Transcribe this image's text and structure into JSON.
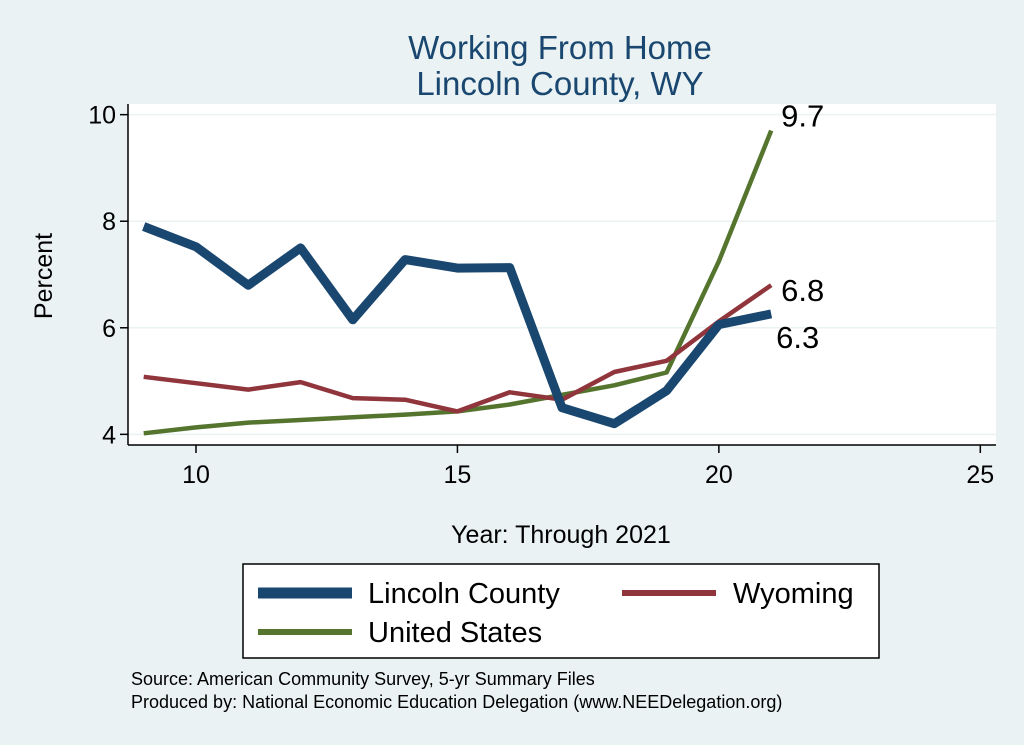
{
  "chart_data": {
    "type": "line",
    "title": [
      "Working From Home",
      "Lincoln County, WY"
    ],
    "xlabel": "Year: Through 2021",
    "ylabel": "Percent",
    "xlim": [
      8.7,
      25.3
    ],
    "ylim": [
      3.8,
      10.2
    ],
    "xticks": [
      10,
      15,
      20,
      25
    ],
    "yticks": [
      4,
      6,
      8,
      10
    ],
    "x": [
      9,
      10,
      11,
      12,
      13,
      14,
      15,
      16,
      17,
      18,
      19,
      20,
      21
    ],
    "series": [
      {
        "name": "Lincoln County",
        "color": "#1a476f",
        "values": [
          7.9,
          7.52,
          6.8,
          7.5,
          6.15,
          7.28,
          7.12,
          7.13,
          4.5,
          4.2,
          4.82,
          6.06,
          6.26
        ]
      },
      {
        "name": "Wyoming",
        "color": "#90353b",
        "values": [
          5.08,
          4.96,
          4.84,
          4.98,
          4.68,
          4.65,
          4.43,
          4.79,
          4.65,
          5.17,
          5.38,
          6.12,
          6.8
        ]
      },
      {
        "name": "United States",
        "color": "#55752f",
        "values": [
          4.02,
          4.13,
          4.22,
          4.27,
          4.32,
          4.37,
          4.43,
          4.56,
          4.74,
          4.92,
          5.16,
          7.25,
          9.7
        ]
      }
    ],
    "end_labels": [
      {
        "series": "United States",
        "text": "9.7"
      },
      {
        "series": "Wyoming",
        "text": "6.8"
      },
      {
        "series": "Lincoln County",
        "text": "6.3"
      }
    ],
    "legend": [
      "Lincoln County",
      "Wyoming",
      "United States"
    ],
    "grid": true
  },
  "footer": {
    "source": "Source: American Community Survey, 5-yr Summary Files",
    "produced_by": "Produced by: National Economic Education Delegation (www.NEEDelegation.org)"
  },
  "colors": {
    "background": "#eaf2f3",
    "plot_background": "#ffffff",
    "grid": "#eaf2f3",
    "title": "#1a476f"
  }
}
